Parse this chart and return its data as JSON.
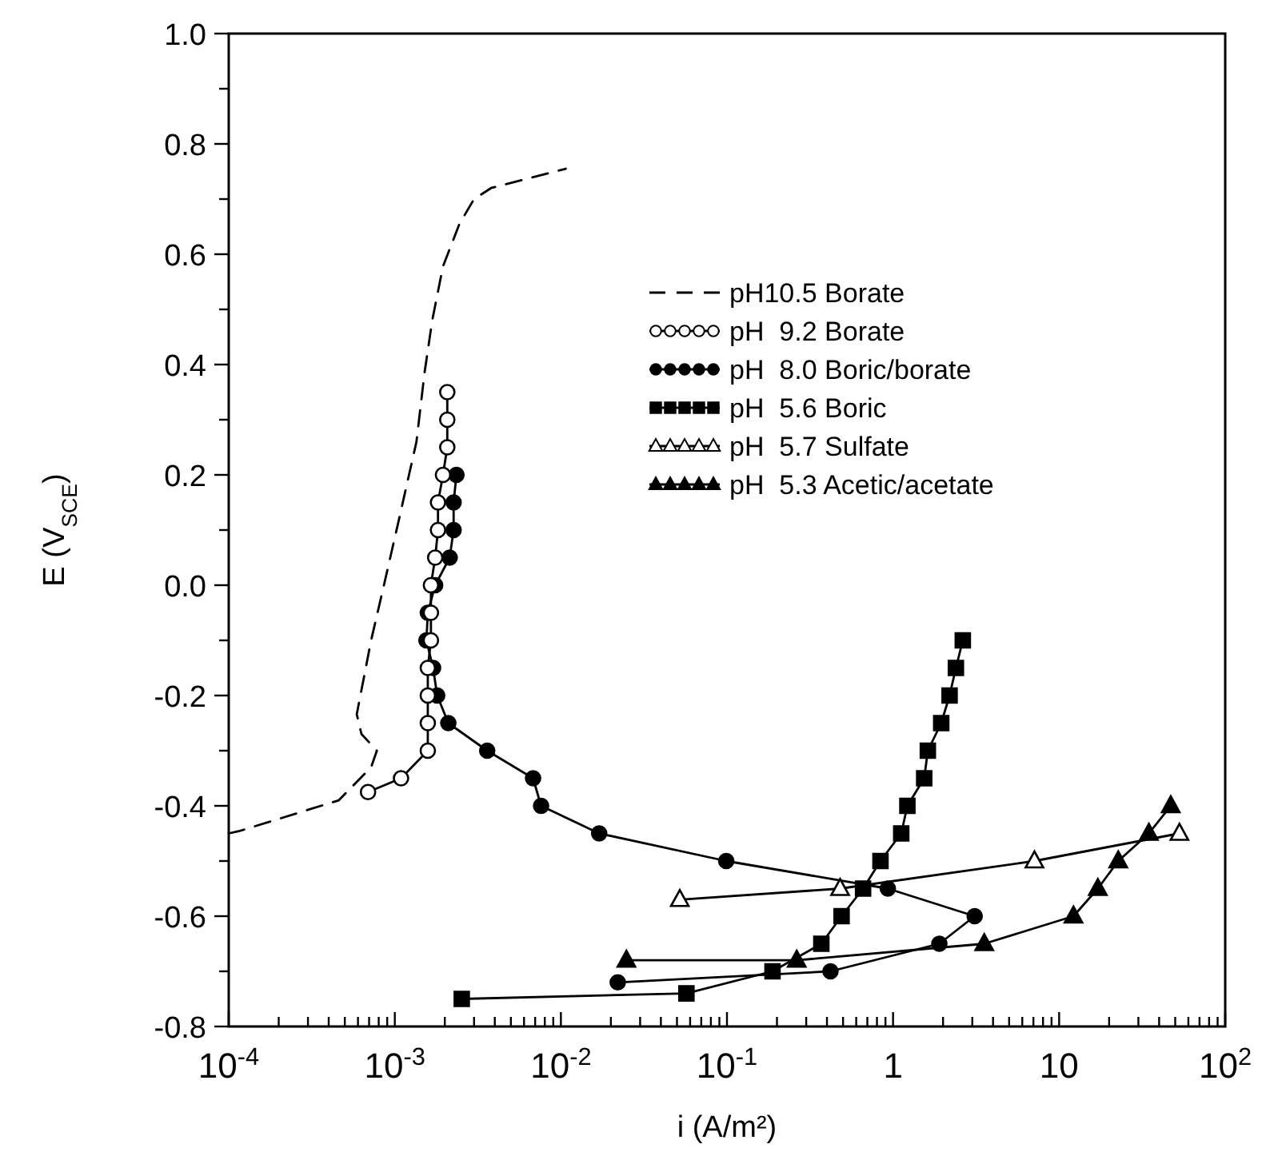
{
  "chart_data": {
    "type": "line",
    "xlabel": "i (A/m²)",
    "ylabel": "E (V$_{SCE}$)",
    "log": "x",
    "xlim": [
      0.0001,
      100
    ],
    "ylim": [
      -0.8,
      1.0
    ],
    "xticks": [
      {
        "value": 0.0001,
        "label": "10$^{-4}$"
      },
      {
        "value": 0.0002,
        "label": null
      },
      {
        "value": 0.0003,
        "label": null
      },
      {
        "value": 0.0004,
        "label": null
      },
      {
        "value": 0.0005,
        "label": null
      },
      {
        "value": 0.0006,
        "label": null
      },
      {
        "value": 0.0007,
        "label": null
      },
      {
        "value": 0.0008,
        "label": null
      },
      {
        "value": 0.0009,
        "label": null
      },
      {
        "value": 0.001,
        "label": "10$^{-3}$"
      },
      {
        "value": 0.002,
        "label": null
      },
      {
        "value": 0.003,
        "label": null
      },
      {
        "value": 0.004,
        "label": null
      },
      {
        "value": 0.005,
        "label": null
      },
      {
        "value": 0.006,
        "label": null
      },
      {
        "value": 0.007,
        "label": null
      },
      {
        "value": 0.008,
        "label": null
      },
      {
        "value": 0.009,
        "label": null
      },
      {
        "value": 0.01,
        "label": "10$^{-2}$"
      },
      {
        "value": 0.02,
        "label": null
      },
      {
        "value": 0.03,
        "label": null
      },
      {
        "value": 0.04,
        "label": null
      },
      {
        "value": 0.05,
        "label": null
      },
      {
        "value": 0.06,
        "label": null
      },
      {
        "value": 0.07,
        "label": null
      },
      {
        "value": 0.08,
        "label": null
      },
      {
        "value": 0.09,
        "label": null
      },
      {
        "value": 0.1,
        "label": "10$^{-1}$"
      },
      {
        "value": 0.2,
        "label": null
      },
      {
        "value": 0.3,
        "label": null
      },
      {
        "value": 0.4,
        "label": null
      },
      {
        "value": 0.5,
        "label": null
      },
      {
        "value": 0.6,
        "label": null
      },
      {
        "value": 0.7,
        "label": null
      },
      {
        "value": 0.8,
        "label": null
      },
      {
        "value": 0.9,
        "label": null
      },
      1,
      {
        "value": 2,
        "label": null
      },
      {
        "value": 3,
        "label": null
      },
      {
        "value": 4,
        "label": null
      },
      {
        "value": 5,
        "label": null
      },
      {
        "value": 6,
        "label": null
      },
      {
        "value": 7,
        "label": null
      },
      {
        "value": 8,
        "label": null
      },
      {
        "value": 9,
        "label": null
      },
      10,
      {
        "value": 20,
        "label": null
      },
      {
        "value": 30,
        "label": null
      },
      {
        "value": 40,
        "label": null
      },
      {
        "value": 50,
        "label": null
      },
      {
        "value": 60,
        "label": null
      },
      {
        "value": 70,
        "label": null
      },
      {
        "value": 80,
        "label": null
      },
      {
        "value": 90,
        "label": null
      },
      {
        "value": 100,
        "label": "10$^{2}$"
      }
    ],
    "yticks": [
      -0.8,
      {
        "value": -0.7,
        "label": null
      },
      -0.6,
      {
        "value": -0.5,
        "label": null
      },
      -0.4,
      {
        "value": -0.3,
        "label": null
      },
      -0.2,
      {
        "value": -0.1,
        "label": null
      },
      {
        "value": 0,
        "label": "0.0"
      },
      {
        "value": 0.1,
        "label": null
      },
      0.2,
      {
        "value": 0.3,
        "label": null
      },
      0.4,
      {
        "value": 0.5,
        "label": null
      },
      0.6,
      {
        "value": 0.7,
        "label": null
      },
      0.8,
      {
        "value": 0.9,
        "label": null
      },
      {
        "value": 1,
        "label": "1.0"
      }
    ],
    "grid": false,
    "legend": "top right",
    "series": [
      {
        "name": "pH10.5 Borate",
        "color": "#000000",
        "line_style": "dashed",
        "marker": "none",
        "x": [
          0.0001,
          0.000115,
          0.00046,
          0.00072,
          0.00078,
          0.00063,
          0.00059,
          0.00072,
          0.00086,
          0.00107,
          0.00135,
          0.00151,
          0.00168,
          0.00195,
          0.00245,
          0.003,
          0.0038,
          0.0107
        ],
        "values": [
          -0.45,
          -0.446,
          -0.39,
          -0.33,
          -0.3,
          -0.27,
          -0.234,
          -0.1,
          0,
          0.125,
          0.26,
          0.385,
          0.48,
          0.578,
          0.655,
          0.7,
          0.72,
          0.755
        ]
      },
      {
        "name": "pH  9.2 Borate",
        "color": "#000000",
        "line_style": "solid",
        "marker": "circle",
        "colors": [
          "#ffffff",
          "#ffffff",
          "#ffffff",
          "#ffffff",
          "#ffffff",
          "#ffffff",
          "#ffffff",
          "#ffffff",
          "#ffffff",
          "#ffffff",
          "#ffffff",
          "#ffffff",
          "#ffffff",
          "#ffffff",
          "#ffffff",
          "#ffffff"
        ],
        "x": [
          0.00069,
          0.00109,
          0.00158,
          0.00158,
          0.00158,
          0.00158,
          0.00165,
          0.00165,
          0.00165,
          0.00175,
          0.00182,
          0.00182,
          0.00195,
          0.00207,
          0.00207,
          0.00207
        ],
        "values": [
          -0.375,
          -0.35,
          -0.3,
          -0.25,
          -0.2,
          -0.15,
          -0.1,
          -0.05,
          0,
          0.05,
          0.1,
          0.15,
          0.2,
          0.25,
          0.3,
          0.35
        ]
      },
      {
        "name": "pH  8.0 Boric/borate",
        "color": "#000000",
        "line_style": "solid",
        "marker": "circle",
        "x": [
          0.022,
          0.42,
          1.9,
          3.1,
          0.93,
          0.099,
          0.017,
          0.0076,
          0.0068,
          0.0036,
          0.0021,
          0.0018,
          0.0017,
          0.00155,
          0.00158,
          0.00175,
          0.00214,
          0.00226,
          0.00226,
          0.00235
        ],
        "values": [
          -0.72,
          -0.7,
          -0.65,
          -0.6,
          -0.55,
          -0.5,
          -0.45,
          -0.4,
          -0.35,
          -0.3,
          -0.25,
          -0.2,
          -0.15,
          -0.1,
          -0.05,
          0,
          0.05,
          0.1,
          0.15,
          0.2
        ]
      },
      {
        "name": "pH  5.6 Boric",
        "color": "#000000",
        "line_style": "solid",
        "marker": "square",
        "x": [
          0.00253,
          0.057,
          0.188,
          0.37,
          0.49,
          0.66,
          0.84,
          1.12,
          1.22,
          1.54,
          1.62,
          1.95,
          2.19,
          2.39,
          2.63
        ],
        "values": [
          -0.75,
          -0.74,
          -0.7,
          -0.65,
          -0.6,
          -0.55,
          -0.5,
          -0.45,
          -0.4,
          -0.35,
          -0.3,
          -0.25,
          -0.2,
          -0.15,
          -0.1
        ]
      },
      {
        "name": "pH  5.7 Sulfate",
        "color": "#000000",
        "line_style": "solid",
        "marker": "triangle",
        "colors": [
          "#ffffff",
          "#ffffff",
          "#ffffff",
          "#ffffff"
        ],
        "x": [
          0.052,
          0.48,
          7.1,
          53
        ],
        "values": [
          -0.57,
          -0.55,
          -0.5,
          -0.45
        ]
      },
      {
        "name": "pH  5.3 Acetic/acetate",
        "color": "#000000",
        "line_style": "solid",
        "marker": "triangle",
        "x": [
          0.0248,
          0.263,
          3.54,
          12.2,
          17.1,
          22.7,
          34.7,
          47
        ],
        "values": [
          -0.68,
          -0.68,
          -0.65,
          -0.6,
          -0.55,
          -0.5,
          -0.45,
          -0.4
        ]
      }
    ]
  }
}
